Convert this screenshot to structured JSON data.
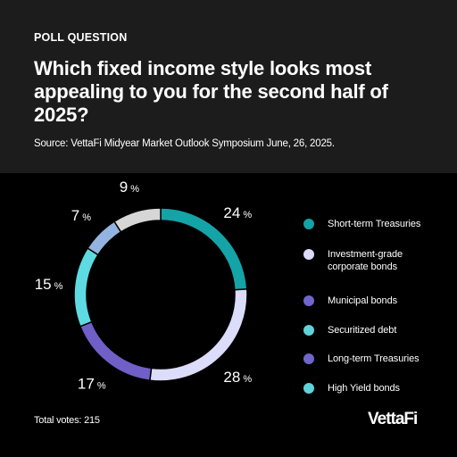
{
  "header": {
    "eyebrow": "POLL QUESTION",
    "title": "Which fixed income style looks most appealing to you for the second half of 2025?",
    "source": "Source: VettaFi Midyear Market Outlook Symposium June, 26, 2025."
  },
  "colors": {
    "background": "#000000",
    "header_background": "#1c1c1c",
    "accent": "#5fd3d8"
  },
  "chart_data": {
    "type": "pie",
    "variant": "donut",
    "categories": [
      "Short-term Treasuries",
      "Investment-grade corporate bonds",
      "Municipal bonds",
      "Securitized debt",
      "Long-term Treasuries",
      "High Yield bonds"
    ],
    "legend": [
      "Short-term Treasuries",
      "Investment-grade corporate bonds",
      "Municipal bonds",
      "Securitized debt",
      "Long-term Treasuries",
      "High Yield bonds"
    ],
    "slices": [
      {
        "label": "24",
        "value": 24,
        "color": "#14a3a6"
      },
      {
        "label": "28",
        "value": 28,
        "color": "#dcdcfb"
      },
      {
        "label": "17",
        "value": 17,
        "color": "#6f5fc7"
      },
      {
        "label": "15",
        "value": 15,
        "color": "#5edbe2"
      },
      {
        "label": "7",
        "value": 7,
        "color": "#93b4e0"
      },
      {
        "label": "9",
        "value": 9,
        "color": "#d6d6d6"
      }
    ],
    "legend_colors": [
      "#14a3a6",
      "#dcdcfb",
      "#7165cc",
      "#5fd3d8",
      "#7165cc",
      "#5fd3d8"
    ],
    "unit": "%",
    "legend_position": "right"
  },
  "footer": {
    "total_votes": "Total votes: 215",
    "logo": "VettaFi"
  }
}
